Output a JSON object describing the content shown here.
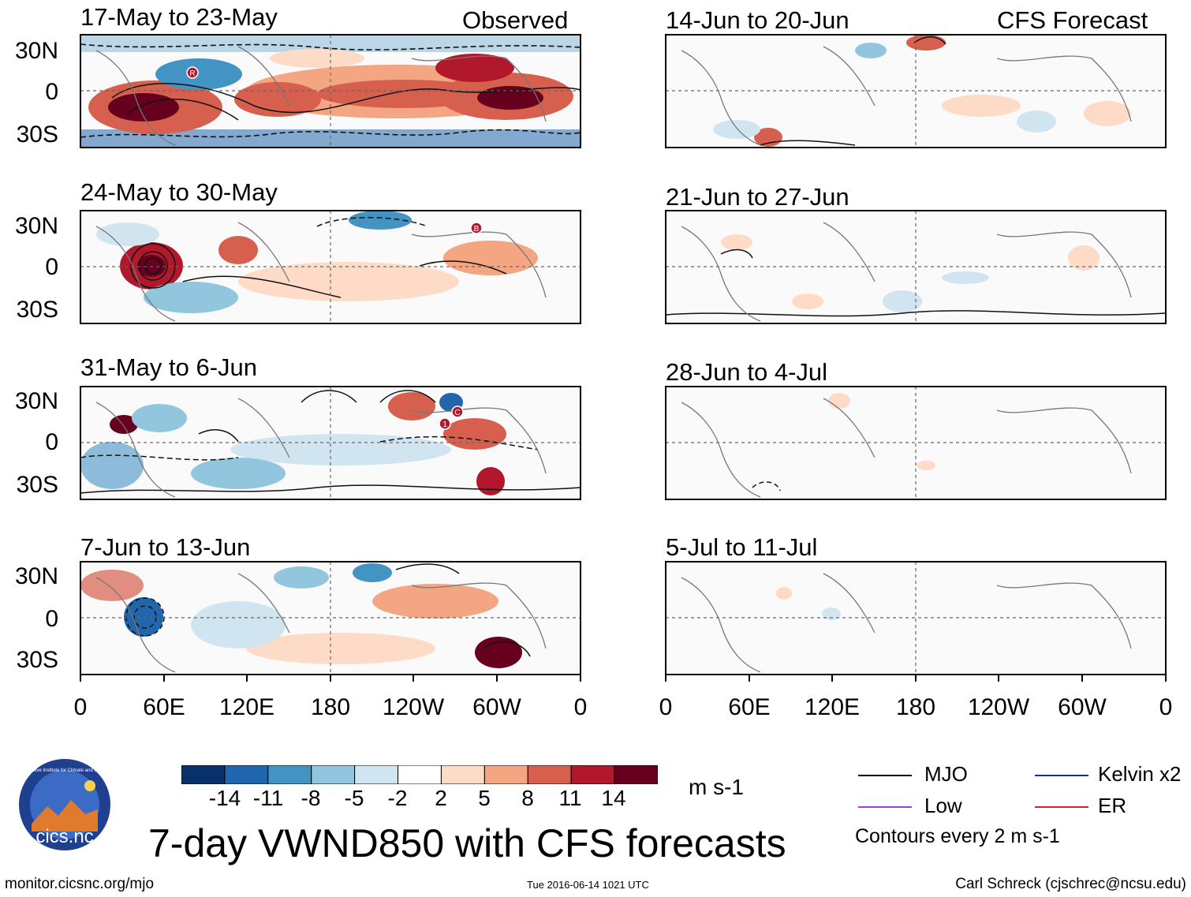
{
  "figure_title": "7-day VWND850 with CFS forecasts",
  "observed_label": "Observed",
  "forecast_label": "CFS Forecast",
  "lat_labels": [
    "30N",
    "0",
    "30S"
  ],
  "lon_labels": [
    "0",
    "60E",
    "120E",
    "180",
    "120W",
    "60W",
    "0"
  ],
  "panels_observed": [
    {
      "title": "17-May to 23-May"
    },
    {
      "title": "24-May to 30-May"
    },
    {
      "title": "31-May to 6-Jun"
    },
    {
      "title": "7-Jun to 13-Jun"
    }
  ],
  "panels_forecast": [
    {
      "title": "14-Jun to 20-Jun"
    },
    {
      "title": "21-Jun to 27-Jun"
    },
    {
      "title": "28-Jun to 4-Jul"
    },
    {
      "title": "5-Jul to 11-Jul"
    }
  ],
  "event_markers": {
    "panel1": [
      "R"
    ],
    "panel2": [
      "B"
    ],
    "panel3": [
      "1",
      "C"
    ]
  },
  "colorbar": {
    "ticks": [
      "-14",
      "-11",
      "-8",
      "-5",
      "-2",
      "2",
      "5",
      "8",
      "11",
      "14"
    ],
    "colors": [
      "#08306b",
      "#2166ac",
      "#4393c3",
      "#92c5de",
      "#d1e5f0",
      "#ffffff",
      "#fddbc7",
      "#f4a582",
      "#d6604d",
      "#b2182b",
      "#67001f"
    ],
    "unit": "m s-1"
  },
  "legend": {
    "items": [
      {
        "label": "MJO",
        "color": "#000000"
      },
      {
        "label": "Kelvin x2",
        "color": "#2020c0"
      },
      {
        "label": "Low",
        "color": "#a040e0"
      },
      {
        "label": "ER",
        "color": "#e02020"
      }
    ],
    "contour_note": "Contours every 2 m s-1"
  },
  "footer": {
    "left": "monitor.cicsnc.org/mjo",
    "center": "Tue 2016-06-14 1021 UTC",
    "right": "Carl Schreck (cjschrec@ncsu.edu)"
  },
  "logo": {
    "ring_text": "Cooperative Institute for Climate and Satellites",
    "name": "cics.nc"
  }
}
